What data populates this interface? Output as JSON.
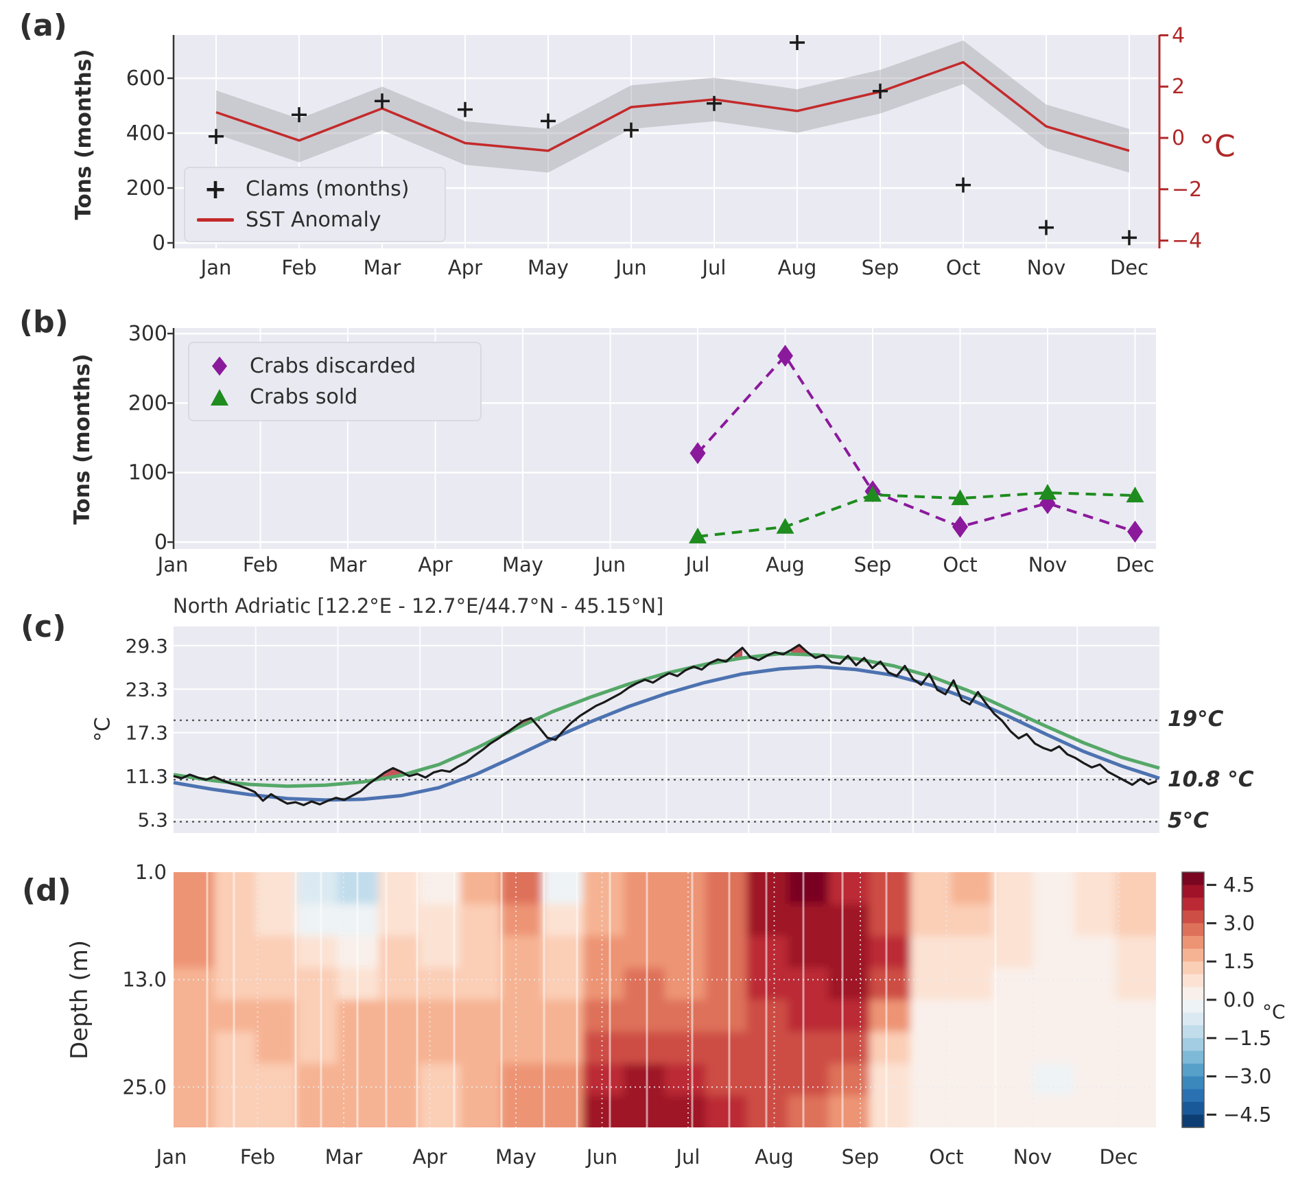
{
  "labels": {
    "a": "(a)",
    "b": "(b)",
    "c": "(c)",
    "d": "(d)"
  },
  "months": [
    "Jan",
    "Feb",
    "Mar",
    "Apr",
    "May",
    "Jun",
    "Jul",
    "Aug",
    "Sep",
    "Oct",
    "Nov",
    "Dec"
  ],
  "chart_data": [
    {
      "id": "a",
      "type": "line",
      "x": "months",
      "ylabel": "Tons (months)",
      "ylabel_right": "°C",
      "ylim_left": [
        0,
        757
      ],
      "ylim_right": [
        -4,
        4
      ],
      "yticks_left": [
        {
          "v": 600,
          "label": "600"
        },
        {
          "v": 400,
          "label": "400"
        },
        {
          "v": 200,
          "label": "200"
        },
        {
          "v": 0,
          "label": "0"
        }
      ],
      "yticks_right": [
        {
          "v": 4,
          "label": "4"
        },
        {
          "v": 2,
          "label": "2"
        },
        {
          "v": 0,
          "label": "0"
        },
        {
          "v": -2,
          "label": "−2"
        },
        {
          "v": -4,
          "label": "−4"
        }
      ],
      "series": [
        {
          "name": "Clams (months)",
          "axis": "left",
          "marker": "plus",
          "color": "#1a1a1a",
          "values": [
            388,
            467,
            517,
            486,
            444,
            411,
            508,
            730,
            553,
            211,
            56,
            19
          ]
        },
        {
          "name": "SST Anomaly",
          "axis": "right",
          "marker": "none",
          "color": "#c32a2a",
          "band_halfwidth": 0.85,
          "band_color": "#9a9aa0",
          "values": [
            1.0,
            -0.1,
            1.15,
            -0.2,
            -0.5,
            1.2,
            1.5,
            1.05,
            1.8,
            2.95,
            0.45,
            -0.5
          ]
        }
      ]
    },
    {
      "id": "b",
      "type": "scatter-line",
      "x": "months",
      "ylabel": "Tons (months)",
      "ylim": [
        0,
        310
      ],
      "yticks": [
        {
          "v": 300,
          "label": "300"
        },
        {
          "v": 200,
          "label": "200"
        },
        {
          "v": 100,
          "label": "100"
        },
        {
          "v": 0,
          "label": "0"
        }
      ],
      "series": [
        {
          "name": "Crabs discarded",
          "marker": "diamond",
          "line_style": "dashed",
          "color": "#8a1a9b",
          "x_months": [
            "Jul",
            "Aug",
            "Sep",
            "Oct",
            "Nov",
            "Dec"
          ],
          "values": [
            128,
            268,
            73,
            22,
            56,
            15
          ]
        },
        {
          "name": "Crabs sold",
          "marker": "triangle",
          "line_style": "dashed",
          "color": "#1e8c1e",
          "x_months": [
            "Jul",
            "Aug",
            "Sep",
            "Oct",
            "Nov",
            "Dec"
          ],
          "values": [
            8,
            22,
            68,
            63,
            71,
            67
          ]
        }
      ]
    },
    {
      "id": "c",
      "type": "line",
      "title": "North Adriatic [12.2°E - 12.7°E/44.7°N - 45.15°N]",
      "ylabel": "°C",
      "ylim": [
        3.6,
        31.8
      ],
      "yticks": [
        {
          "v": 29.3,
          "label": "29.3"
        },
        {
          "v": 23.3,
          "label": "23.3"
        },
        {
          "v": 17.3,
          "label": "17.3"
        },
        {
          "v": 11.3,
          "label": "11.3"
        },
        {
          "v": 5.3,
          "label": "5.3"
        }
      ],
      "thresholds": [
        {
          "v": 19,
          "label": "19°C"
        },
        {
          "v": 10.8,
          "label": "10.8 °C"
        },
        {
          "v": 5,
          "label": "5°C"
        }
      ],
      "exceedance_fill_color": "#c44e52",
      "series": {
        "daily_sst": {
          "color": "#1a1a1a",
          "day_step": 3,
          "values": [
            11.3,
            11.0,
            11.5,
            11.1,
            10.8,
            11.2,
            10.7,
            10.3,
            10.0,
            9.6,
            9.1,
            7.9,
            8.8,
            8.1,
            7.5,
            7.7,
            7.3,
            7.8,
            7.4,
            7.9,
            8.3,
            8.0,
            8.6,
            9.2,
            10.2,
            11.0,
            11.8,
            12.4,
            11.9,
            11.3,
            11.6,
            11.1,
            11.8,
            12.1,
            11.9,
            12.6,
            13.2,
            14.1,
            14.9,
            15.8,
            16.5,
            17.3,
            18.1,
            18.9,
            19.3,
            18.0,
            16.6,
            16.3,
            17.6,
            18.7,
            19.6,
            20.3,
            21.0,
            21.5,
            22.1,
            22.7,
            23.5,
            24.1,
            24.6,
            24.2,
            24.9,
            25.5,
            25.1,
            25.9,
            26.4,
            26.0,
            26.9,
            27.4,
            27.1,
            28.1,
            29.0,
            27.7,
            27.3,
            27.9,
            28.4,
            28.1,
            28.7,
            29.4,
            28.4,
            27.6,
            28.0,
            27.0,
            26.8,
            27.9,
            26.6,
            27.6,
            26.2,
            27.1,
            25.6,
            25.1,
            26.5,
            24.7,
            23.9,
            25.4,
            23.2,
            22.6,
            24.5,
            21.8,
            21.2,
            22.9,
            21.3,
            19.9,
            18.9,
            17.5,
            16.5,
            17.1,
            15.8,
            15.2,
            14.8,
            15.4,
            14.3,
            13.8,
            13.1,
            12.5,
            12.9,
            11.9,
            11.3,
            10.7,
            10.1,
            10.9,
            10.2,
            10.6
          ]
        },
        "smooth_green": {
          "color": "#55a868",
          "day_step": 14,
          "values": [
            11.5,
            10.7,
            10.15,
            9.9,
            10.05,
            10.5,
            11.4,
            12.9,
            15.2,
            17.8,
            20.2,
            22.2,
            24.0,
            25.5,
            26.7,
            27.6,
            28.2,
            28.0,
            27.5,
            26.5,
            25.0,
            23.0,
            20.6,
            18.2,
            15.9,
            13.9,
            12.4
          ]
        },
        "smooth_blue": {
          "color": "#4c72b0",
          "day_step": 14,
          "values": [
            10.4,
            9.5,
            8.75,
            8.2,
            8.0,
            8.1,
            8.6,
            9.7,
            11.6,
            14.0,
            16.5,
            18.8,
            20.9,
            22.7,
            24.2,
            25.4,
            26.1,
            26.4,
            26.0,
            25.2,
            23.8,
            21.9,
            19.6,
            17.1,
            14.7,
            12.7,
            11.0
          ]
        }
      }
    },
    {
      "id": "d",
      "type": "heatmap",
      "x": "months",
      "ylabel": "Depth (m)",
      "depth_range": [
        1.0,
        29.5
      ],
      "yticks": [
        {
          "v": 1.0,
          "label": "1.0"
        },
        {
          "v": 13.0,
          "label": "13.0"
        },
        {
          "v": 25.0,
          "label": "25.0"
        }
      ],
      "colorbar": {
        "label": "°C",
        "range": [
          -5,
          5
        ],
        "level_step": 0.5,
        "ticks": [
          {
            "v": 4.5,
            "label": "4.5"
          },
          {
            "v": 3.0,
            "label": "3.0"
          },
          {
            "v": 1.5,
            "label": "1.5"
          },
          {
            "v": 0.0,
            "label": "0.0"
          },
          {
            "v": -1.5,
            "label": "−1.5"
          },
          {
            "v": -3.0,
            "label": "−3.0"
          },
          {
            "v": -4.5,
            "label": "−4.5"
          }
        ]
      },
      "anomaly_columns": [
        [
          2.2,
          2.2,
          2.0,
          1.8,
          1.6,
          1.5,
          1.5,
          1.5
        ],
        [
          1.0,
          1.2,
          1.3,
          1.4,
          1.5,
          1.4,
          1.2,
          1.2
        ],
        [
          0.8,
          0.8,
          1.0,
          1.2,
          1.5,
          1.5,
          1.3,
          1.2
        ],
        [
          -0.8,
          -0.3,
          0.5,
          1.0,
          1.2,
          1.3,
          1.5,
          1.5
        ],
        [
          -1.2,
          -0.5,
          0.3,
          0.8,
          1.5,
          1.8,
          1.8,
          1.6
        ],
        [
          0.5,
          0.8,
          1.0,
          1.2,
          1.5,
          1.8,
          1.8,
          1.5
        ],
        [
          0.3,
          0.5,
          0.8,
          1.0,
          1.5,
          1.5,
          1.3,
          1.2
        ],
        [
          1.5,
          1.3,
          1.2,
          1.2,
          1.5,
          1.5,
          1.5,
          1.5
        ],
        [
          2.5,
          2.2,
          1.8,
          1.5,
          1.5,
          1.8,
          2.0,
          2.0
        ],
        [
          -0.5,
          0.5,
          1.0,
          1.3,
          1.5,
          1.8,
          2.2,
          2.2
        ],
        [
          1.8,
          1.8,
          2.0,
          2.2,
          2.5,
          3.0,
          3.5,
          4.0
        ],
        [
          2.2,
          2.2,
          2.3,
          2.5,
          2.8,
          3.2,
          4.0,
          4.4
        ],
        [
          2.0,
          2.2,
          2.2,
          2.4,
          2.6,
          3.0,
          3.5,
          4.0
        ],
        [
          2.6,
          2.6,
          2.6,
          2.6,
          2.8,
          3.0,
          3.4,
          3.6
        ],
        [
          4.2,
          4.0,
          3.8,
          3.5,
          3.2,
          3.0,
          3.0,
          3.0
        ],
        [
          4.5,
          4.3,
          4.0,
          3.8,
          3.5,
          3.2,
          3.0,
          2.8
        ],
        [
          3.8,
          4.0,
          4.2,
          4.0,
          3.5,
          3.0,
          2.5,
          2.0
        ],
        [
          3.0,
          3.2,
          3.5,
          3.0,
          2.0,
          1.2,
          0.8,
          0.5
        ],
        [
          1.2,
          1.0,
          0.8,
          0.5,
          0.3,
          0.3,
          0.3,
          0.3
        ],
        [
          1.5,
          1.2,
          0.8,
          0.5,
          0.3,
          0.2,
          0.2,
          0.2
        ],
        [
          0.8,
          0.8,
          0.5,
          0.3,
          0.2,
          0.1,
          0.1,
          0.1
        ],
        [
          0.3,
          0.2,
          0.2,
          0.1,
          0.1,
          0.0,
          -0.1,
          0.0
        ],
        [
          0.5,
          0.5,
          0.4,
          0.3,
          0.2,
          0.2,
          0.2,
          0.2
        ],
        [
          1.2,
          1.0,
          0.8,
          0.5,
          0.3,
          0.3,
          0.3,
          0.3
        ]
      ]
    }
  ]
}
